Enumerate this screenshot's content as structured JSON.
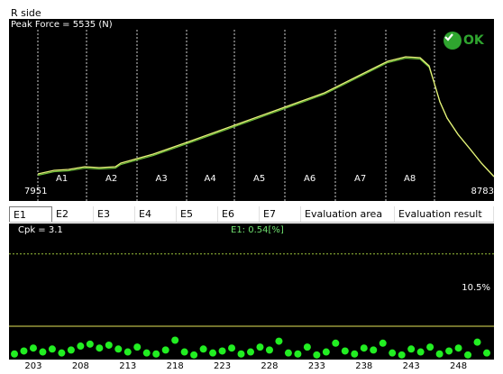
{
  "panel_title": "R side",
  "waveform": {
    "peak_label": "Peak Force = 5535 (N)",
    "start_value": "7951",
    "end_value": "8783",
    "areas": [
      "A1",
      "A2",
      "A3",
      "A4",
      "A5",
      "A6",
      "A7",
      "A8"
    ],
    "status": "OK",
    "status_color": "#2fa52f",
    "curve_color": "#e8f27a"
  },
  "tabs": [
    "E1",
    "E2",
    "E3",
    "E4",
    "E5",
    "E6",
    "E7",
    "Evaluation area",
    "Evaluation result"
  ],
  "active_tab": "E1",
  "stats": {
    "cpk_label": "Cpk = 3.1",
    "series_label": "E1: 0.54[%]",
    "limit_label": "10.5%",
    "point_color": "#22ee22"
  },
  "chart_data": {
    "type": "scatter",
    "x_tick_labels": [
      "203",
      "208",
      "213",
      "218",
      "223",
      "228",
      "233",
      "238",
      "243",
      "248"
    ],
    "x": [
      201,
      202,
      203,
      204,
      205,
      206,
      207,
      208,
      209,
      210,
      211,
      212,
      213,
      214,
      215,
      216,
      217,
      218,
      219,
      220,
      221,
      222,
      223,
      224,
      225,
      226,
      227,
      228,
      229,
      230,
      231,
      232,
      233,
      234,
      235,
      236,
      237,
      238,
      239,
      240,
      241,
      242,
      243,
      244,
      245,
      246,
      247,
      248,
      249,
      250,
      251
    ],
    "values": [
      0.3,
      0.6,
      0.9,
      0.5,
      0.8,
      0.4,
      0.7,
      1.1,
      1.3,
      0.9,
      1.2,
      0.8,
      0.5,
      1.0,
      0.4,
      0.3,
      0.7,
      1.7,
      0.5,
      0.2,
      0.8,
      0.4,
      0.6,
      0.9,
      0.3,
      0.5,
      1.0,
      0.7,
      1.6,
      0.4,
      0.3,
      1.0,
      0.2,
      0.5,
      1.4,
      0.6,
      0.3,
      0.9,
      0.7,
      1.4,
      0.4,
      0.2,
      0.8,
      0.5,
      1.0,
      0.3,
      0.6,
      0.9,
      0.2,
      1.5,
      0.4
    ],
    "upper_limit": 10.5,
    "ylim": [
      0,
      12.5
    ]
  }
}
